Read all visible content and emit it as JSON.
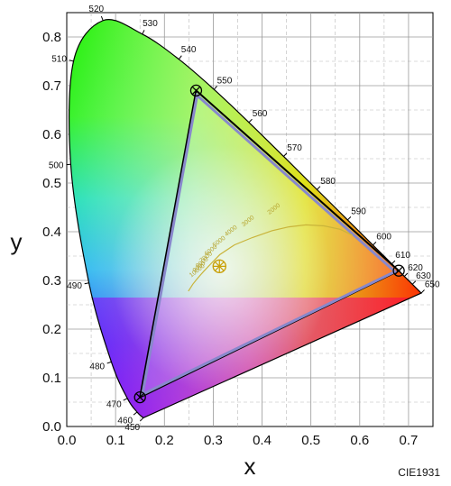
{
  "chart_data": {
    "type": "scatter",
    "title": "",
    "xlabel": "x",
    "ylabel": "y",
    "xlim": [
      0,
      0.75
    ],
    "ylim": [
      0,
      0.85
    ],
    "x_ticks": [
      "0.0",
      "0.1",
      "0.2",
      "0.3",
      "0.4",
      "0.5",
      "0.6",
      "0.7"
    ],
    "y_ticks": [
      "0.0",
      "0.1",
      "0.2",
      "0.3",
      "0.4",
      "0.5",
      "0.6",
      "0.7",
      "0.8"
    ],
    "grid": true,
    "footer": "CIE1931",
    "spectral_locus": [
      {
        "nm": "450",
        "x": 0.1566,
        "y": 0.0177
      },
      {
        "nm": "460",
        "x": 0.144,
        "y": 0.0297
      },
      {
        "nm": "470",
        "x": 0.1241,
        "y": 0.0578
      },
      {
        "nm": "480",
        "x": 0.0913,
        "y": 0.1327
      },
      {
        "nm": "490",
        "x": 0.0454,
        "y": 0.295
      },
      {
        "nm": "500",
        "x": 0.0082,
        "y": 0.5384
      },
      {
        "nm": "510",
        "x": 0.0139,
        "y": 0.7502
      },
      {
        "nm": "520",
        "x": 0.0743,
        "y": 0.8338
      },
      {
        "nm": "530",
        "x": 0.1547,
        "y": 0.8059
      },
      {
        "nm": "540",
        "x": 0.2296,
        "y": 0.7543
      },
      {
        "nm": "550",
        "x": 0.3016,
        "y": 0.6923
      },
      {
        "nm": "560",
        "x": 0.3731,
        "y": 0.6245
      },
      {
        "nm": "570",
        "x": 0.4441,
        "y": 0.5547
      },
      {
        "nm": "580",
        "x": 0.5125,
        "y": 0.4866
      },
      {
        "nm": "590",
        "x": 0.5752,
        "y": 0.4242
      },
      {
        "nm": "600",
        "x": 0.627,
        "y": 0.3725
      },
      {
        "nm": "610",
        "x": 0.6658,
        "y": 0.334
      },
      {
        "nm": "620",
        "x": 0.6915,
        "y": 0.3083
      },
      {
        "nm": "630",
        "x": 0.7079,
        "y": 0.292
      },
      {
        "nm": "650",
        "x": 0.726,
        "y": 0.274
      }
    ],
    "gamut_outer": [
      {
        "x": 0.265,
        "y": 0.69
      },
      {
        "x": 0.68,
        "y": 0.32
      },
      {
        "x": 0.15,
        "y": 0.06
      }
    ],
    "gamut_inner": [
      {
        "x": 0.267,
        "y": 0.68
      },
      {
        "x": 0.672,
        "y": 0.318
      },
      {
        "x": 0.155,
        "y": 0.066
      }
    ],
    "primaries": [
      {
        "name": "green",
        "x": 0.265,
        "y": 0.69
      },
      {
        "name": "red",
        "x": 0.68,
        "y": 0.32
      },
      {
        "name": "blue",
        "x": 0.15,
        "y": 0.06
      }
    ],
    "white_point": {
      "x": 0.3127,
      "y": 0.329
    },
    "planckian_locus": [
      {
        "x": 0.249,
        "y": 0.278
      },
      {
        "x": 0.253,
        "y": 0.284
      },
      {
        "x": 0.258,
        "y": 0.292
      },
      {
        "x": 0.265,
        "y": 0.301
      },
      {
        "x": 0.272,
        "y": 0.309
      },
      {
        "x": 0.281,
        "y": 0.319
      },
      {
        "x": 0.295,
        "y": 0.334
      },
      {
        "x": 0.3135,
        "y": 0.353
      },
      {
        "x": 0.3435,
        "y": 0.373
      },
      {
        "x": 0.38,
        "y": 0.388
      },
      {
        "x": 0.42,
        "y": 0.402
      },
      {
        "x": 0.455,
        "y": 0.41
      },
      {
        "x": 0.49,
        "y": 0.414
      },
      {
        "x": 0.527,
        "y": 0.412
      },
      {
        "x": 0.56,
        "y": 0.405
      },
      {
        "x": 0.585,
        "y": 0.393
      }
    ],
    "cct_labels": [
      {
        "text": "2000",
        "x": 0.415,
        "y": 0.435
      },
      {
        "text": "3000",
        "x": 0.362,
        "y": 0.41
      },
      {
        "text": "4000",
        "x": 0.327,
        "y": 0.39
      },
      {
        "text": "5000",
        "x": 0.303,
        "y": 0.368
      },
      {
        "text": "6000",
        "x": 0.286,
        "y": 0.35
      },
      {
        "text": "7000",
        "x": 0.276,
        "y": 0.336
      },
      {
        "text": "8000",
        "x": 0.268,
        "y": 0.325
      },
      {
        "text": "9000",
        "x": 0.262,
        "y": 0.316
      },
      {
        "text": "10000",
        "x": 0.255,
        "y": 0.306
      }
    ]
  },
  "colors": {
    "background": "#ffffff",
    "grid": "#9a9a9a",
    "gamut_outer_stroke": "#000000",
    "gamut_inner_stroke": "#8888cc",
    "planckian_stroke": "#c9b43a",
    "primary_marker": "#000000",
    "white_point_marker": "#c9a10a"
  }
}
